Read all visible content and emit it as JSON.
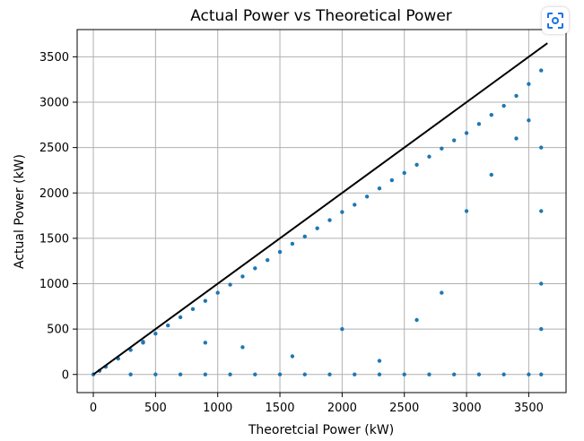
{
  "chart_data": {
    "type": "scatter",
    "title": "Actual Power vs Theoretical Power",
    "xlabel": "Theoretcial Power (kW)",
    "ylabel": "Actual Power (kW)",
    "xlim": [
      -130,
      3800
    ],
    "ylim": [
      -200,
      3800
    ],
    "x_ticks": [
      0,
      500,
      1000,
      1500,
      2000,
      2500,
      3000,
      3500
    ],
    "y_ticks": [
      0,
      500,
      1000,
      1500,
      2000,
      2500,
      3000,
      3500
    ],
    "grid": true,
    "marker_color": "#1f77b4",
    "reference_line": {
      "x": [
        0,
        3650
      ],
      "y": [
        0,
        3650
      ],
      "color": "#000000"
    },
    "series": [
      {
        "x": [
          0,
          50,
          100,
          200,
          300,
          400,
          500,
          600,
          700,
          800,
          900,
          1000,
          1100,
          1200,
          1300,
          1400,
          1500,
          1600,
          1700,
          1800,
          1900,
          2000,
          2100,
          2200,
          2300,
          2400,
          2500,
          2600,
          2700,
          2800,
          2900,
          3000,
          3100,
          3200,
          3300,
          3400,
          3500,
          3600
        ],
        "y": [
          0,
          40,
          85,
          175,
          270,
          360,
          450,
          540,
          630,
          720,
          810,
          900,
          990,
          1080,
          1170,
          1260,
          1350,
          1440,
          1520,
          1610,
          1700,
          1790,
          1870,
          1960,
          2050,
          2140,
          2220,
          2310,
          2400,
          2490,
          2580,
          2660,
          2760,
          2860,
          2960,
          3070,
          3200,
          3350
        ]
      },
      {
        "x": [
          300,
          500,
          700,
          900,
          1100,
          1300,
          1500,
          1700,
          1900,
          2100,
          2300,
          2500,
          2700,
          2900,
          3100,
          3300,
          3500,
          3600,
          3600,
          3600,
          3600,
          3600
        ],
        "y": [
          0,
          0,
          0,
          0,
          0,
          0,
          0,
          0,
          0,
          0,
          0,
          0,
          0,
          0,
          0,
          0,
          0,
          0,
          500,
          1000,
          1800,
          2500
        ]
      },
      {
        "x": [
          400,
          900,
          1200,
          1600,
          2000,
          2300,
          2600,
          2800,
          3000,
          3200,
          3400,
          3500
        ],
        "y": [
          350,
          350,
          300,
          200,
          500,
          150,
          600,
          900,
          1800,
          2200,
          2600,
          2800
        ]
      }
    ]
  },
  "toolbar": {
    "lens_icon": "image-search-icon"
  }
}
